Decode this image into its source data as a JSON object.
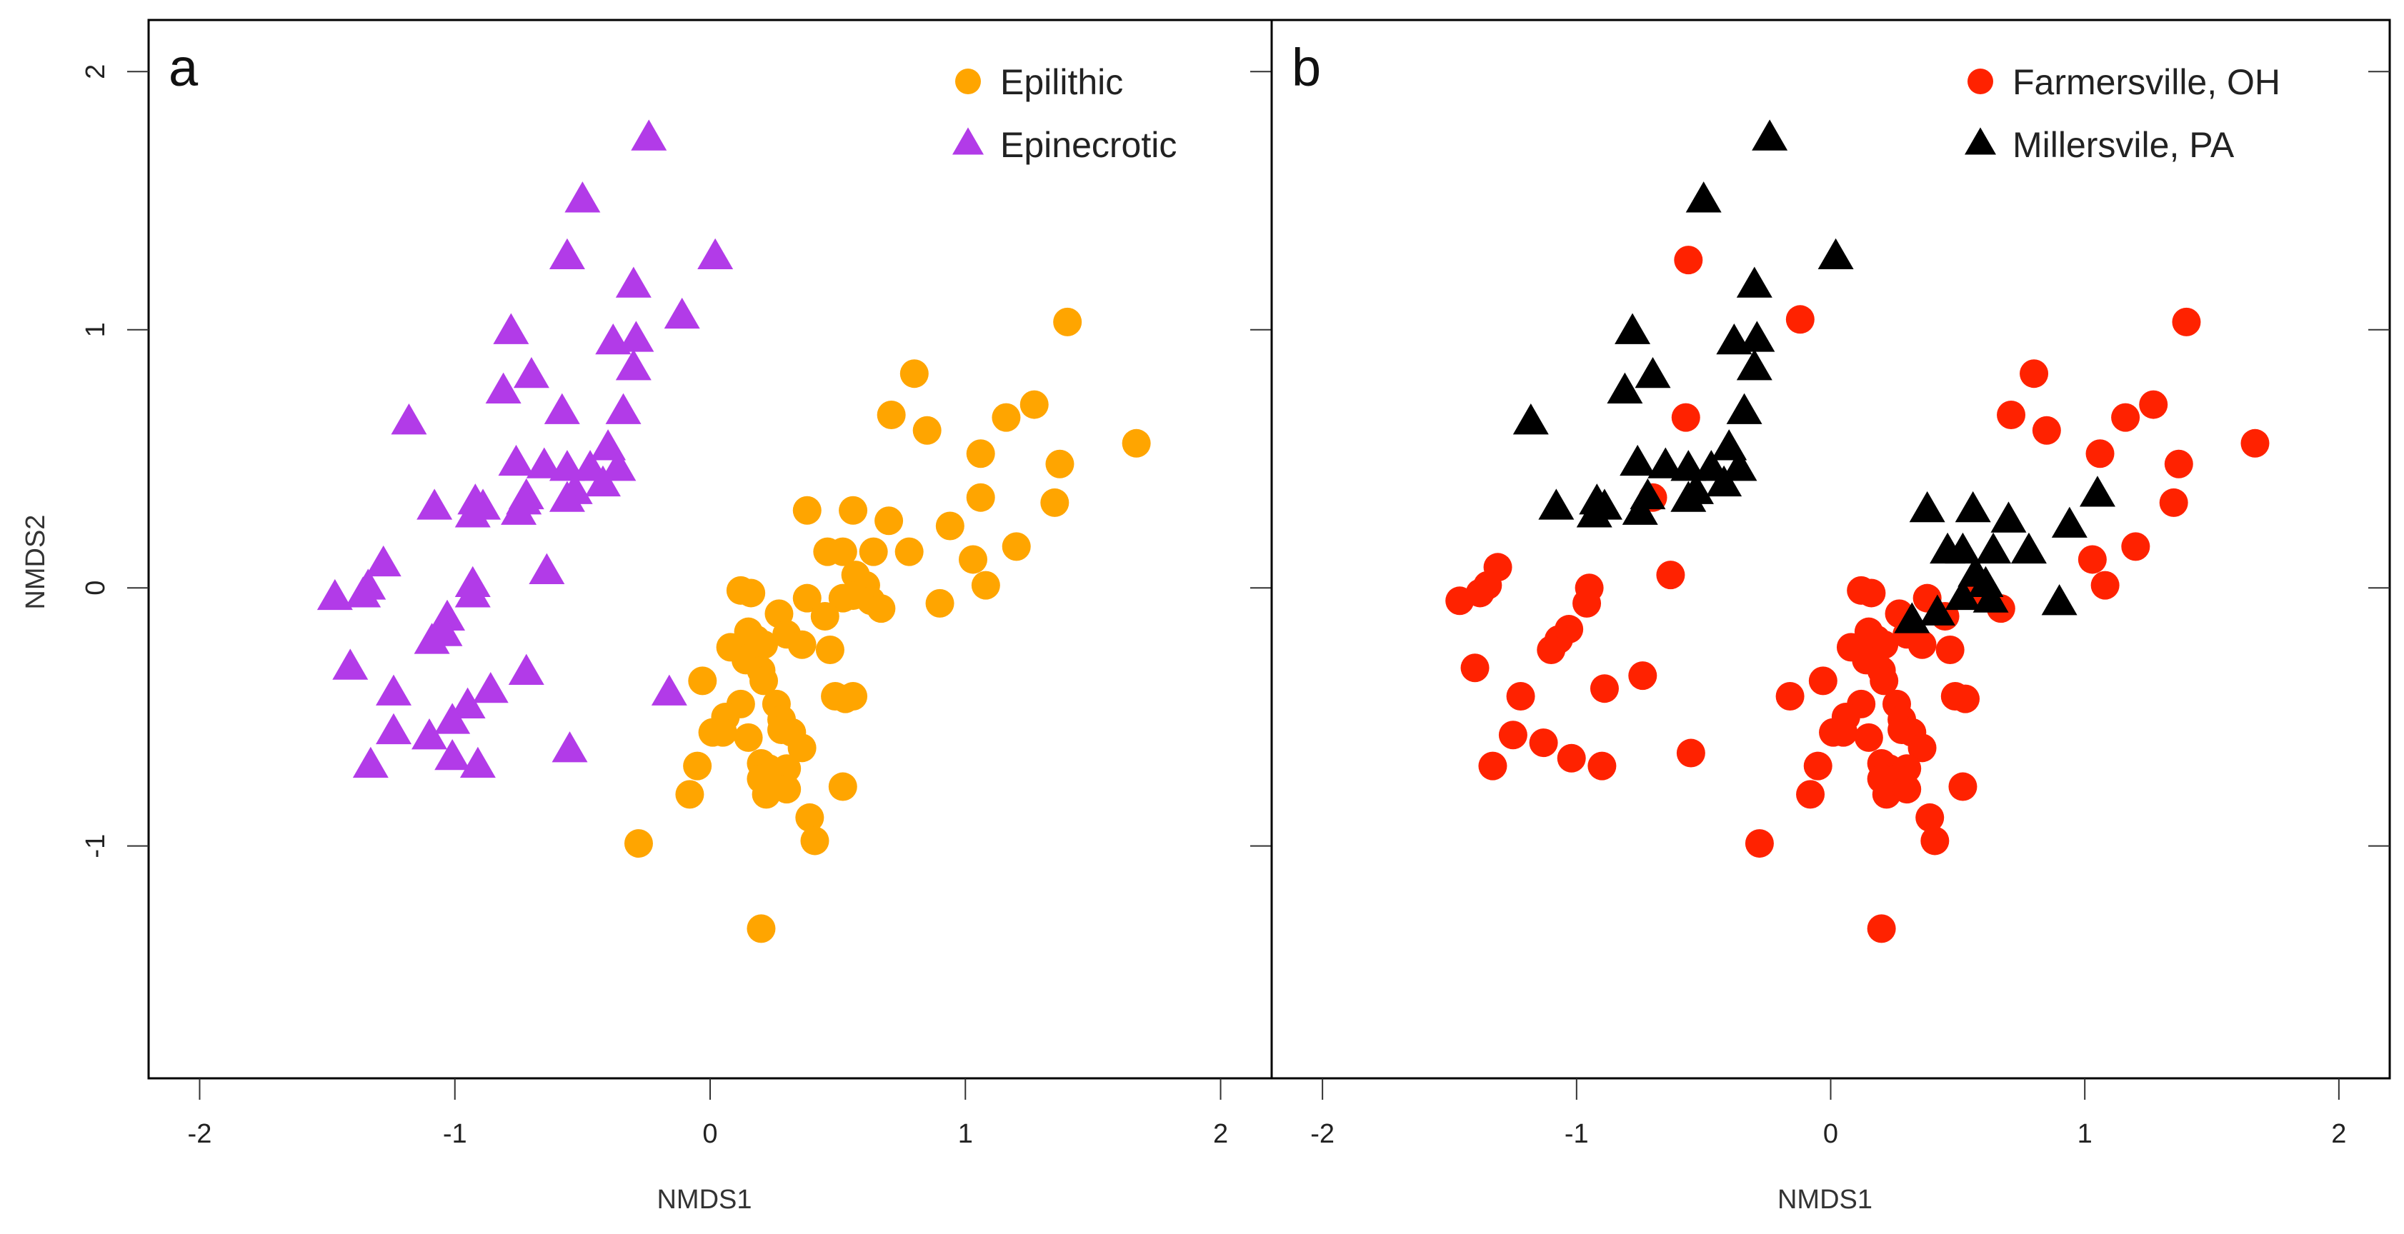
{
  "chart_data": [
    {
      "type": "scatter",
      "panel_label": "a",
      "xlabel": "NMDS1",
      "ylabel": "NMDS2",
      "xlim": [
        -2.2,
        2.2
      ],
      "ylim": [
        -1.9,
        2.2
      ],
      "xticks": [
        "-2",
        "-1",
        "0",
        "1",
        "2"
      ],
      "yticks": [
        "-1",
        "0",
        "1",
        "2"
      ],
      "legend_position": "top-right",
      "series": [
        {
          "name": "Epilithic",
          "marker": "circle",
          "color": "#FFA500",
          "points": [
            [
              1.4,
              1.03
            ],
            [
              1.67,
              0.56
            ],
            [
              0.8,
              0.83
            ],
            [
              0.71,
              0.67
            ],
            [
              0.85,
              0.61
            ],
            [
              1.16,
              0.66
            ],
            [
              1.27,
              0.71
            ],
            [
              1.06,
              0.52
            ],
            [
              1.37,
              0.48
            ],
            [
              1.06,
              0.35
            ],
            [
              1.35,
              0.33
            ],
            [
              0.38,
              0.3
            ],
            [
              0.56,
              0.3
            ],
            [
              0.7,
              0.26
            ],
            [
              0.94,
              0.24
            ],
            [
              1.2,
              0.16
            ],
            [
              1.03,
              0.11
            ],
            [
              0.46,
              0.14
            ],
            [
              0.52,
              0.14
            ],
            [
              0.64,
              0.14
            ],
            [
              0.78,
              0.14
            ],
            [
              0.57,
              0.05
            ],
            [
              0.61,
              0.01
            ],
            [
              1.08,
              0.01
            ],
            [
              0.12,
              -0.01
            ],
            [
              0.16,
              -0.02
            ],
            [
              0.38,
              -0.04
            ],
            [
              0.52,
              -0.04
            ],
            [
              0.56,
              -0.03
            ],
            [
              0.63,
              -0.05
            ],
            [
              0.67,
              -0.08
            ],
            [
              0.9,
              -0.06
            ],
            [
              0.27,
              -0.1
            ],
            [
              0.45,
              -0.11
            ],
            [
              0.15,
              -0.17
            ],
            [
              0.18,
              -0.2
            ],
            [
              0.21,
              -0.22
            ],
            [
              0.08,
              -0.23
            ],
            [
              0.3,
              -0.18
            ],
            [
              0.36,
              -0.22
            ],
            [
              0.47,
              -0.24
            ],
            [
              0.14,
              -0.28
            ],
            [
              0.2,
              -0.32
            ],
            [
              -0.03,
              -0.36
            ],
            [
              0.21,
              -0.36
            ],
            [
              0.12,
              -0.45
            ],
            [
              0.26,
              -0.45
            ],
            [
              0.06,
              -0.5
            ],
            [
              0.28,
              -0.51
            ],
            [
              0.49,
              -0.42
            ],
            [
              0.53,
              -0.43
            ],
            [
              0.56,
              -0.42
            ],
            [
              0.01,
              -0.56
            ],
            [
              0.05,
              -0.56
            ],
            [
              0.28,
              -0.55
            ],
            [
              0.32,
              -0.56
            ],
            [
              0.15,
              -0.58
            ],
            [
              0.36,
              -0.62
            ],
            [
              0.2,
              -0.68
            ],
            [
              0.23,
              -0.7
            ],
            [
              0.3,
              -0.7
            ],
            [
              0.26,
              -0.74
            ],
            [
              -0.05,
              -0.69
            ],
            [
              0.2,
              -0.74
            ],
            [
              0.22,
              -0.8
            ],
            [
              0.3,
              -0.78
            ],
            [
              -0.08,
              -0.8
            ],
            [
              0.52,
              -0.77
            ],
            [
              0.39,
              -0.89
            ],
            [
              0.41,
              -0.98
            ],
            [
              -0.28,
              -0.99
            ],
            [
              0.2,
              -1.32
            ]
          ]
        },
        {
          "name": "Epinecrotic",
          "marker": "triangle",
          "color": "#B23BE8",
          "points": [
            [
              -0.24,
              1.74
            ],
            [
              -0.5,
              1.5
            ],
            [
              0.02,
              1.28
            ],
            [
              -0.56,
              1.28
            ],
            [
              -0.3,
              1.17
            ],
            [
              -0.78,
              0.99
            ],
            [
              -0.11,
              1.05
            ],
            [
              -0.38,
              0.95
            ],
            [
              -0.29,
              0.96
            ],
            [
              -0.7,
              0.82
            ],
            [
              -0.3,
              0.85
            ],
            [
              -0.81,
              0.76
            ],
            [
              -0.58,
              0.68
            ],
            [
              -0.34,
              0.68
            ],
            [
              -1.18,
              0.64
            ],
            [
              -0.4,
              0.54
            ],
            [
              -0.65,
              0.47
            ],
            [
              -0.76,
              0.48
            ],
            [
              -0.56,
              0.46
            ],
            [
              -0.47,
              0.46
            ],
            [
              -0.36,
              0.46
            ],
            [
              -0.42,
              0.4
            ],
            [
              -0.53,
              0.37
            ],
            [
              -0.56,
              0.34
            ],
            [
              -0.72,
              0.35
            ],
            [
              -0.73,
              0.33
            ],
            [
              -1.08,
              0.31
            ],
            [
              -0.92,
              0.33
            ],
            [
              -0.89,
              0.31
            ],
            [
              -0.75,
              0.29
            ],
            [
              -0.93,
              0.28
            ],
            [
              -1.28,
              0.09
            ],
            [
              -0.64,
              0.06
            ],
            [
              -0.93,
              0.01
            ],
            [
              -1.34,
              0.0
            ],
            [
              -1.36,
              -0.03
            ],
            [
              -0.93,
              -0.03
            ],
            [
              -1.47,
              -0.04
            ],
            [
              -1.03,
              -0.12
            ],
            [
              -1.04,
              -0.18
            ],
            [
              -1.09,
              -0.21
            ],
            [
              -0.72,
              -0.33
            ],
            [
              -1.41,
              -0.31
            ],
            [
              -0.86,
              -0.4
            ],
            [
              -1.24,
              -0.41
            ],
            [
              -0.16,
              -0.41
            ],
            [
              -0.95,
              -0.46
            ],
            [
              -1.01,
              -0.52
            ],
            [
              -1.24,
              -0.56
            ],
            [
              -1.1,
              -0.58
            ],
            [
              -0.55,
              -0.63
            ],
            [
              -1.01,
              -0.66
            ],
            [
              -0.91,
              -0.69
            ],
            [
              -1.33,
              -0.69
            ]
          ]
        }
      ]
    },
    {
      "type": "scatter",
      "panel_label": "b",
      "xlabel": "NMDS1",
      "ylabel": "",
      "xlim": [
        -2.2,
        2.2
      ],
      "ylim": [
        -1.9,
        2.2
      ],
      "xticks": [
        "-2",
        "-1",
        "0",
        "1",
        "2"
      ],
      "yticks": [],
      "legend_position": "top-right",
      "series": [
        {
          "name": "Farmersville, OH",
          "marker": "circle",
          "color": "#FF2200",
          "points": [
            [
              -0.56,
              1.27
            ],
            [
              -0.12,
              1.04
            ],
            [
              1.4,
              1.03
            ],
            [
              1.67,
              0.56
            ],
            [
              0.8,
              0.83
            ],
            [
              0.71,
              0.67
            ],
            [
              0.85,
              0.61
            ],
            [
              1.16,
              0.66
            ],
            [
              1.27,
              0.71
            ],
            [
              1.06,
              0.52
            ],
            [
              1.37,
              0.48
            ],
            [
              1.35,
              0.33
            ],
            [
              -0.57,
              0.66
            ],
            [
              -0.7,
              0.35
            ],
            [
              1.2,
              0.16
            ],
            [
              1.03,
              0.11
            ],
            [
              1.08,
              0.01
            ],
            [
              -1.31,
              0.08
            ],
            [
              -1.35,
              0.01
            ],
            [
              -1.38,
              -0.02
            ],
            [
              -1.46,
              -0.05
            ],
            [
              -0.95,
              0.0
            ],
            [
              -0.96,
              -0.06
            ],
            [
              -0.63,
              0.05
            ],
            [
              -1.03,
              -0.16
            ],
            [
              -1.07,
              -0.2
            ],
            [
              -1.1,
              -0.24
            ],
            [
              -1.4,
              -0.31
            ],
            [
              -0.89,
              -0.39
            ],
            [
              -0.74,
              -0.34
            ],
            [
              -1.22,
              -0.42
            ],
            [
              -1.25,
              -0.57
            ],
            [
              -1.13,
              -0.6
            ],
            [
              -0.55,
              -0.64
            ],
            [
              -1.02,
              -0.66
            ],
            [
              -0.9,
              -0.69
            ],
            [
              -1.33,
              -0.69
            ],
            [
              0.12,
              -0.01
            ],
            [
              0.16,
              -0.02
            ],
            [
              0.38,
              -0.04
            ],
            [
              0.56,
              -0.03
            ],
            [
              0.67,
              -0.08
            ],
            [
              0.27,
              -0.1
            ],
            [
              0.45,
              -0.11
            ],
            [
              0.15,
              -0.17
            ],
            [
              0.18,
              -0.2
            ],
            [
              0.21,
              -0.22
            ],
            [
              0.08,
              -0.23
            ],
            [
              0.3,
              -0.18
            ],
            [
              0.36,
              -0.22
            ],
            [
              0.47,
              -0.24
            ],
            [
              0.14,
              -0.28
            ],
            [
              0.2,
              -0.32
            ],
            [
              -0.03,
              -0.36
            ],
            [
              0.21,
              -0.36
            ],
            [
              0.12,
              -0.45
            ],
            [
              0.26,
              -0.45
            ],
            [
              0.06,
              -0.5
            ],
            [
              0.28,
              -0.51
            ],
            [
              0.49,
              -0.42
            ],
            [
              0.53,
              -0.43
            ],
            [
              -0.16,
              -0.42
            ],
            [
              0.01,
              -0.56
            ],
            [
              0.05,
              -0.56
            ],
            [
              0.28,
              -0.55
            ],
            [
              0.32,
              -0.56
            ],
            [
              0.15,
              -0.58
            ],
            [
              0.36,
              -0.62
            ],
            [
              0.2,
              -0.68
            ],
            [
              0.23,
              -0.7
            ],
            [
              0.3,
              -0.7
            ],
            [
              0.26,
              -0.74
            ],
            [
              -0.05,
              -0.69
            ],
            [
              0.2,
              -0.74
            ],
            [
              0.22,
              -0.8
            ],
            [
              0.3,
              -0.78
            ],
            [
              -0.08,
              -0.8
            ],
            [
              0.52,
              -0.77
            ],
            [
              0.39,
              -0.89
            ],
            [
              0.41,
              -0.98
            ],
            [
              -0.28,
              -0.99
            ],
            [
              0.2,
              -1.32
            ]
          ]
        },
        {
          "name": "Millersvile, PA",
          "marker": "triangle",
          "color": "#000000",
          "points": [
            [
              -0.24,
              1.74
            ],
            [
              -0.5,
              1.5
            ],
            [
              0.02,
              1.28
            ],
            [
              -0.3,
              1.17
            ],
            [
              -0.78,
              0.99
            ],
            [
              -0.38,
              0.95
            ],
            [
              -0.29,
              0.96
            ],
            [
              -0.7,
              0.82
            ],
            [
              -0.3,
              0.85
            ],
            [
              -0.81,
              0.76
            ],
            [
              -0.34,
              0.68
            ],
            [
              -1.18,
              0.64
            ],
            [
              -0.4,
              0.54
            ],
            [
              -0.65,
              0.47
            ],
            [
              -0.76,
              0.48
            ],
            [
              -0.56,
              0.46
            ],
            [
              -0.47,
              0.46
            ],
            [
              -0.36,
              0.46
            ],
            [
              -0.42,
              0.4
            ],
            [
              -0.53,
              0.37
            ],
            [
              -0.56,
              0.34
            ],
            [
              -0.72,
              0.35
            ],
            [
              -1.08,
              0.31
            ],
            [
              -0.92,
              0.33
            ],
            [
              -0.89,
              0.31
            ],
            [
              -0.75,
              0.29
            ],
            [
              -0.93,
              0.28
            ],
            [
              0.38,
              0.3
            ],
            [
              0.56,
              0.3
            ],
            [
              0.7,
              0.26
            ],
            [
              0.94,
              0.24
            ],
            [
              1.05,
              0.36
            ],
            [
              0.46,
              0.14
            ],
            [
              0.52,
              0.14
            ],
            [
              0.64,
              0.14
            ],
            [
              0.78,
              0.14
            ],
            [
              0.57,
              0.05
            ],
            [
              0.61,
              0.01
            ],
            [
              0.52,
              -0.04
            ],
            [
              0.63,
              -0.05
            ],
            [
              0.9,
              -0.06
            ],
            [
              0.42,
              -0.1
            ],
            [
              0.32,
              -0.13
            ]
          ]
        }
      ]
    }
  ]
}
